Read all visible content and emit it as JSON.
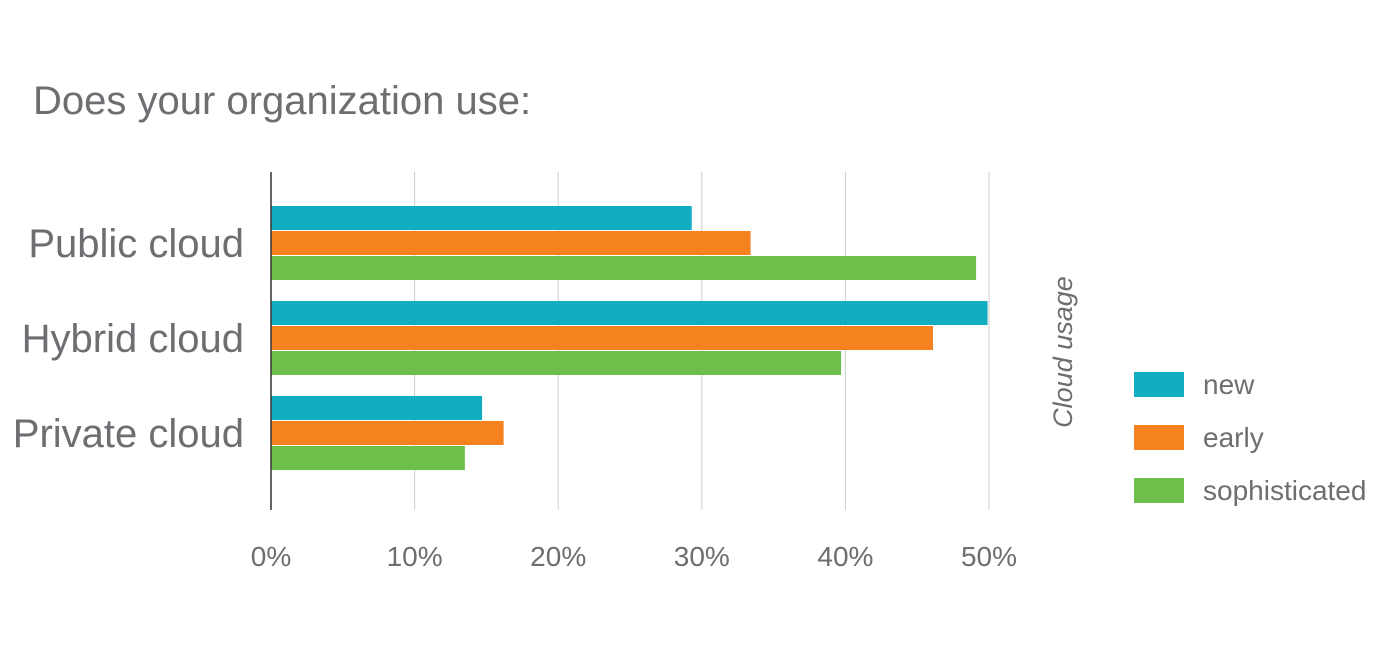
{
  "chart_data": {
    "type": "bar",
    "orientation": "horizontal",
    "title": "Does your organization use:",
    "categories": [
      "Public cloud",
      "Hybrid cloud",
      "Private cloud"
    ],
    "series": [
      {
        "name": "new",
        "values": [
          29.3,
          49.9,
          14.7
        ]
      },
      {
        "name": "early",
        "values": [
          33.4,
          46.1,
          16.2
        ]
      },
      {
        "name": "sophisticated",
        "values": [
          49.1,
          39.7,
          13.5
        ]
      }
    ],
    "xlim": [
      0,
      50
    ],
    "xticks": [
      0,
      10,
      20,
      30,
      40,
      50
    ],
    "xtick_labels": [
      "0%",
      "10%",
      "20%",
      "30%",
      "40%",
      "50%"
    ],
    "xlabel": "",
    "ylabel": "",
    "legend_title": "Cloud usage",
    "legend_position": "right",
    "grid": "vertical",
    "colors": {
      "new": "#13adc2",
      "early": "#f5821f",
      "sophisticated": "#6cbf4a",
      "text": "#6d6e71",
      "axis": "#333333",
      "grid": "#cccccc"
    }
  }
}
